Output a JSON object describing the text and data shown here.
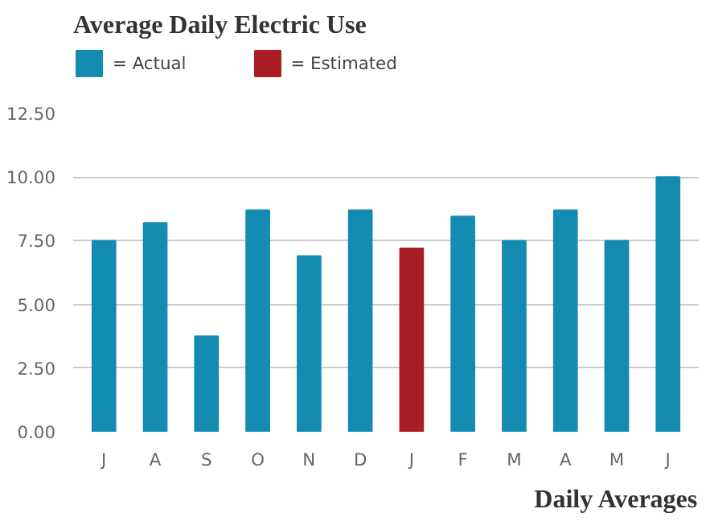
{
  "chart_data": {
    "type": "bar",
    "title": "Average Daily Electric Use",
    "xlabel": "Daily Averages",
    "categories": [
      "J",
      "A",
      "S",
      "O",
      "N",
      "D",
      "J",
      "F",
      "M",
      "A",
      "M",
      "J"
    ],
    "series": [
      {
        "name": "= Actual",
        "color": "#148bb0",
        "values": [
          7.5,
          8.2,
          3.75,
          8.7,
          6.9,
          8.7,
          null,
          8.45,
          7.5,
          8.7,
          7.5,
          10.0
        ]
      },
      {
        "name": "= Estimated",
        "color": "#a91e24",
        "values": [
          null,
          null,
          null,
          null,
          null,
          null,
          7.2,
          null,
          null,
          null,
          null,
          null
        ]
      }
    ],
    "ylim": [
      0,
      12.5
    ],
    "yticks": [
      {
        "value": 0,
        "label": "0.00"
      },
      {
        "value": 2.5,
        "label": "2.50"
      },
      {
        "value": 5,
        "label": "5.00"
      },
      {
        "value": 7.5,
        "label": "7.50"
      },
      {
        "value": 10,
        "label": "10.00"
      },
      {
        "value": 12.5,
        "label": "12.50"
      }
    ],
    "grid": "y",
    "legend": "top left"
  }
}
